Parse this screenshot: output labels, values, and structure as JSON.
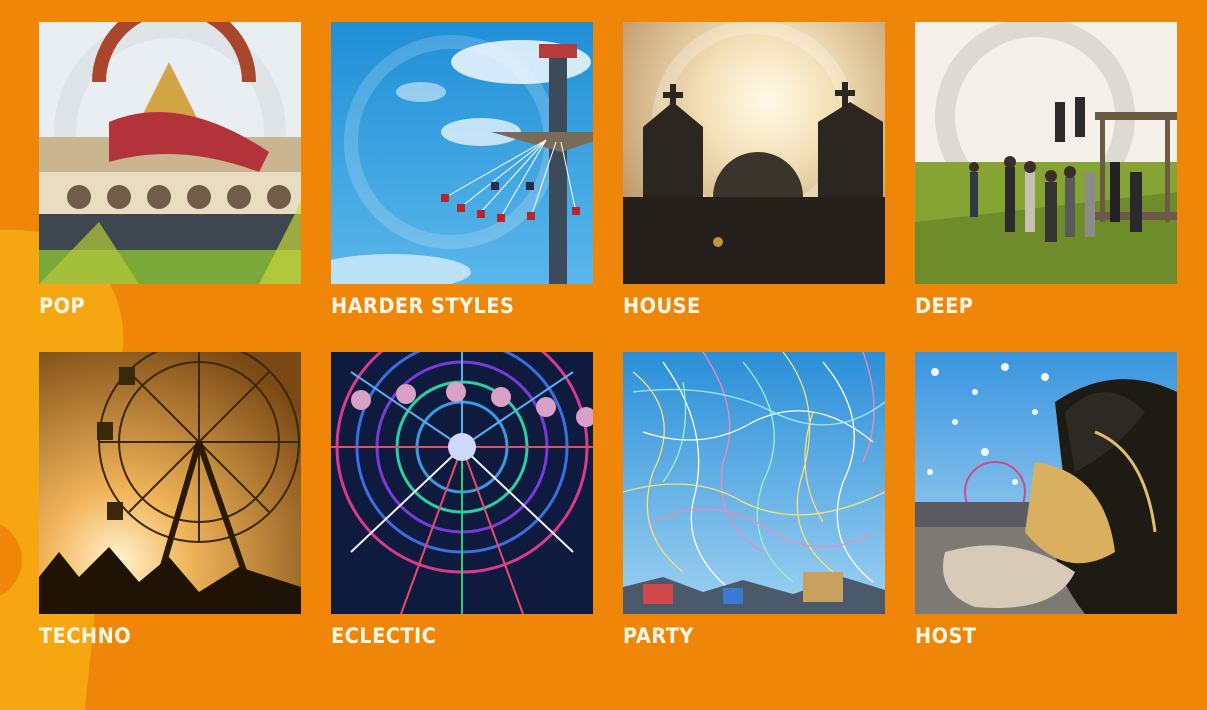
{
  "genres": [
    {
      "label": "POP",
      "image": "stage-crowd-photo"
    },
    {
      "label": "HARDER STYLES",
      "image": "swing-ride-photo"
    },
    {
      "label": "HOUSE",
      "image": "church-silhouette-photo"
    },
    {
      "label": "DEEP",
      "image": "people-on-grass-photo"
    },
    {
      "label": "TECHNO",
      "image": "ferris-wheel-sunset-photo"
    },
    {
      "label": "ECLECTIC",
      "image": "neon-ferris-wheel-photo"
    },
    {
      "label": "PARTY",
      "image": "streamers-photo"
    },
    {
      "label": "HOST",
      "image": "feather-costume-photo"
    }
  ],
  "colors": {
    "background": "#ef8608",
    "accent": "#f6a611",
    "label": "#fff7e8"
  }
}
